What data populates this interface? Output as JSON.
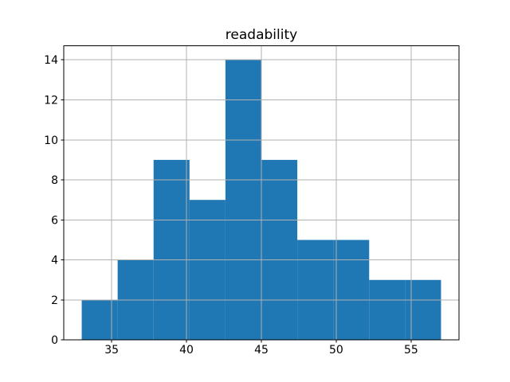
{
  "chart_data": {
    "type": "histogram",
    "title": "readability",
    "xlabel": "",
    "ylabel": "",
    "bin_edges": [
      33.0,
      35.4,
      37.8,
      40.2,
      42.6,
      45.0,
      47.4,
      49.8,
      52.2,
      54.6,
      57.0
    ],
    "counts": [
      2,
      4,
      9,
      7,
      14,
      9,
      5,
      5,
      3,
      3
    ],
    "xlim": [
      31.8,
      58.2
    ],
    "ylim": [
      0,
      14.7
    ],
    "xticks": [
      35,
      40,
      45,
      50,
      55
    ],
    "yticks": [
      0,
      2,
      4,
      6,
      8,
      10,
      12,
      14
    ],
    "grid": true,
    "legend": "none",
    "bar_color": "#1f77b4",
    "grid_color": "#b0b0b0",
    "spine_color": "#000000",
    "tick_color": "#000000",
    "background_color": "#ffffff"
  }
}
